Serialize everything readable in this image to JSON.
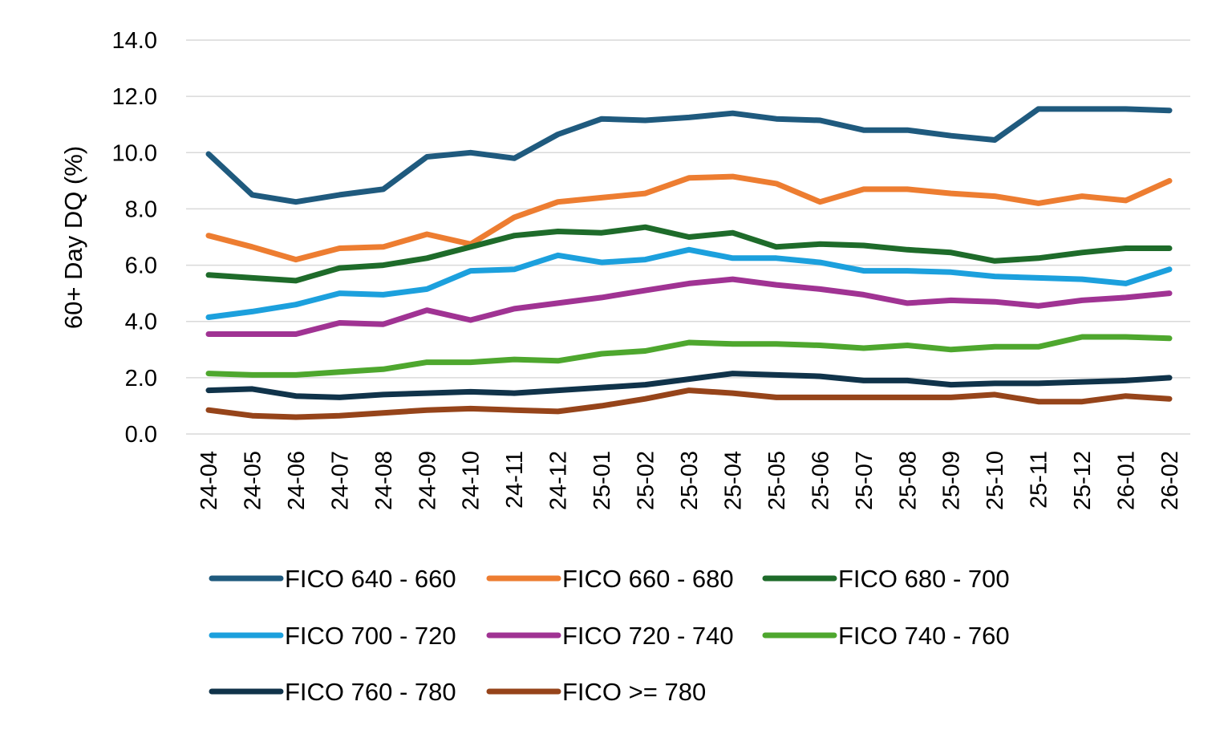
{
  "chart_data": {
    "type": "line",
    "ylabel": "60+ Day DQ (%)",
    "xlabel": "",
    "ylim": [
      0,
      14
    ],
    "yticks": [
      "0.0",
      "2.0",
      "4.0",
      "6.0",
      "8.0",
      "10.0",
      "12.0",
      "14.0"
    ],
    "grid": true,
    "legend_position": "bottom",
    "categories": [
      "24-04",
      "24-05",
      "24-06",
      "24-07",
      "24-08",
      "24-09",
      "24-10",
      "24-11",
      "24-12",
      "25-01",
      "25-02",
      "25-03",
      "25-04",
      "25-05",
      "25-06",
      "25-07",
      "25-08",
      "25-09",
      "25-10",
      "25-11",
      "25-12",
      "26-01",
      "26-02"
    ],
    "series": [
      {
        "name": "FICO 640 - 660",
        "color": "#1f5a7e",
        "values": [
          9.95,
          8.5,
          8.25,
          8.5,
          8.7,
          9.85,
          10.0,
          9.8,
          10.65,
          11.2,
          11.15,
          11.25,
          11.4,
          11.2,
          11.15,
          10.8,
          10.8,
          10.6,
          10.45,
          11.55,
          11.55,
          11.55,
          11.5
        ]
      },
      {
        "name": "FICO 660 - 680",
        "color": "#ed7d31",
        "values": [
          7.05,
          6.65,
          6.2,
          6.6,
          6.65,
          7.1,
          6.75,
          7.7,
          8.25,
          8.4,
          8.55,
          9.1,
          9.15,
          8.9,
          8.25,
          8.7,
          8.7,
          8.55,
          8.45,
          8.2,
          8.45,
          8.3,
          9.0
        ]
      },
      {
        "name": "FICO 680 - 700",
        "color": "#1e6b2a",
        "values": [
          5.65,
          5.55,
          5.45,
          5.9,
          6.0,
          6.25,
          6.65,
          7.05,
          7.2,
          7.15,
          7.35,
          7.0,
          7.15,
          6.65,
          6.75,
          6.7,
          6.55,
          6.45,
          6.15,
          6.25,
          6.45,
          6.6,
          6.6
        ]
      },
      {
        "name": "FICO 700 - 720",
        "color": "#1ca0dd",
        "values": [
          4.15,
          4.35,
          4.6,
          5.0,
          4.95,
          5.15,
          5.8,
          5.85,
          6.35,
          6.1,
          6.2,
          6.55,
          6.25,
          6.25,
          6.1,
          5.8,
          5.8,
          5.75,
          5.6,
          5.55,
          5.5,
          5.35,
          5.85
        ]
      },
      {
        "name": "FICO 720 - 740",
        "color": "#a03393",
        "values": [
          3.55,
          3.55,
          3.55,
          3.95,
          3.9,
          4.4,
          4.05,
          4.45,
          4.65,
          4.85,
          5.1,
          5.35,
          5.5,
          5.3,
          5.15,
          4.95,
          4.65,
          4.75,
          4.7,
          4.55,
          4.75,
          4.85,
          5.0
        ]
      },
      {
        "name": "FICO 740 - 760",
        "color": "#4ea72e",
        "values": [
          2.15,
          2.1,
          2.1,
          2.2,
          2.3,
          2.55,
          2.55,
          2.65,
          2.6,
          2.85,
          2.95,
          3.25,
          3.2,
          3.2,
          3.15,
          3.05,
          3.15,
          3.0,
          3.1,
          3.1,
          3.45,
          3.45,
          3.4
        ]
      },
      {
        "name": "FICO 760 - 780",
        "color": "#10334a",
        "values": [
          1.55,
          1.6,
          1.35,
          1.3,
          1.4,
          1.45,
          1.5,
          1.45,
          1.55,
          1.65,
          1.75,
          1.95,
          2.15,
          2.1,
          2.05,
          1.9,
          1.9,
          1.75,
          1.8,
          1.8,
          1.85,
          1.9,
          2.0
        ]
      },
      {
        "name": "FICO >= 780",
        "color": "#96441a",
        "values": [
          0.85,
          0.65,
          0.6,
          0.65,
          0.75,
          0.85,
          0.9,
          0.85,
          0.8,
          1.0,
          1.25,
          1.55,
          1.45,
          1.3,
          1.3,
          1.3,
          1.3,
          1.3,
          1.4,
          1.15,
          1.15,
          1.35,
          1.25
        ]
      }
    ]
  }
}
